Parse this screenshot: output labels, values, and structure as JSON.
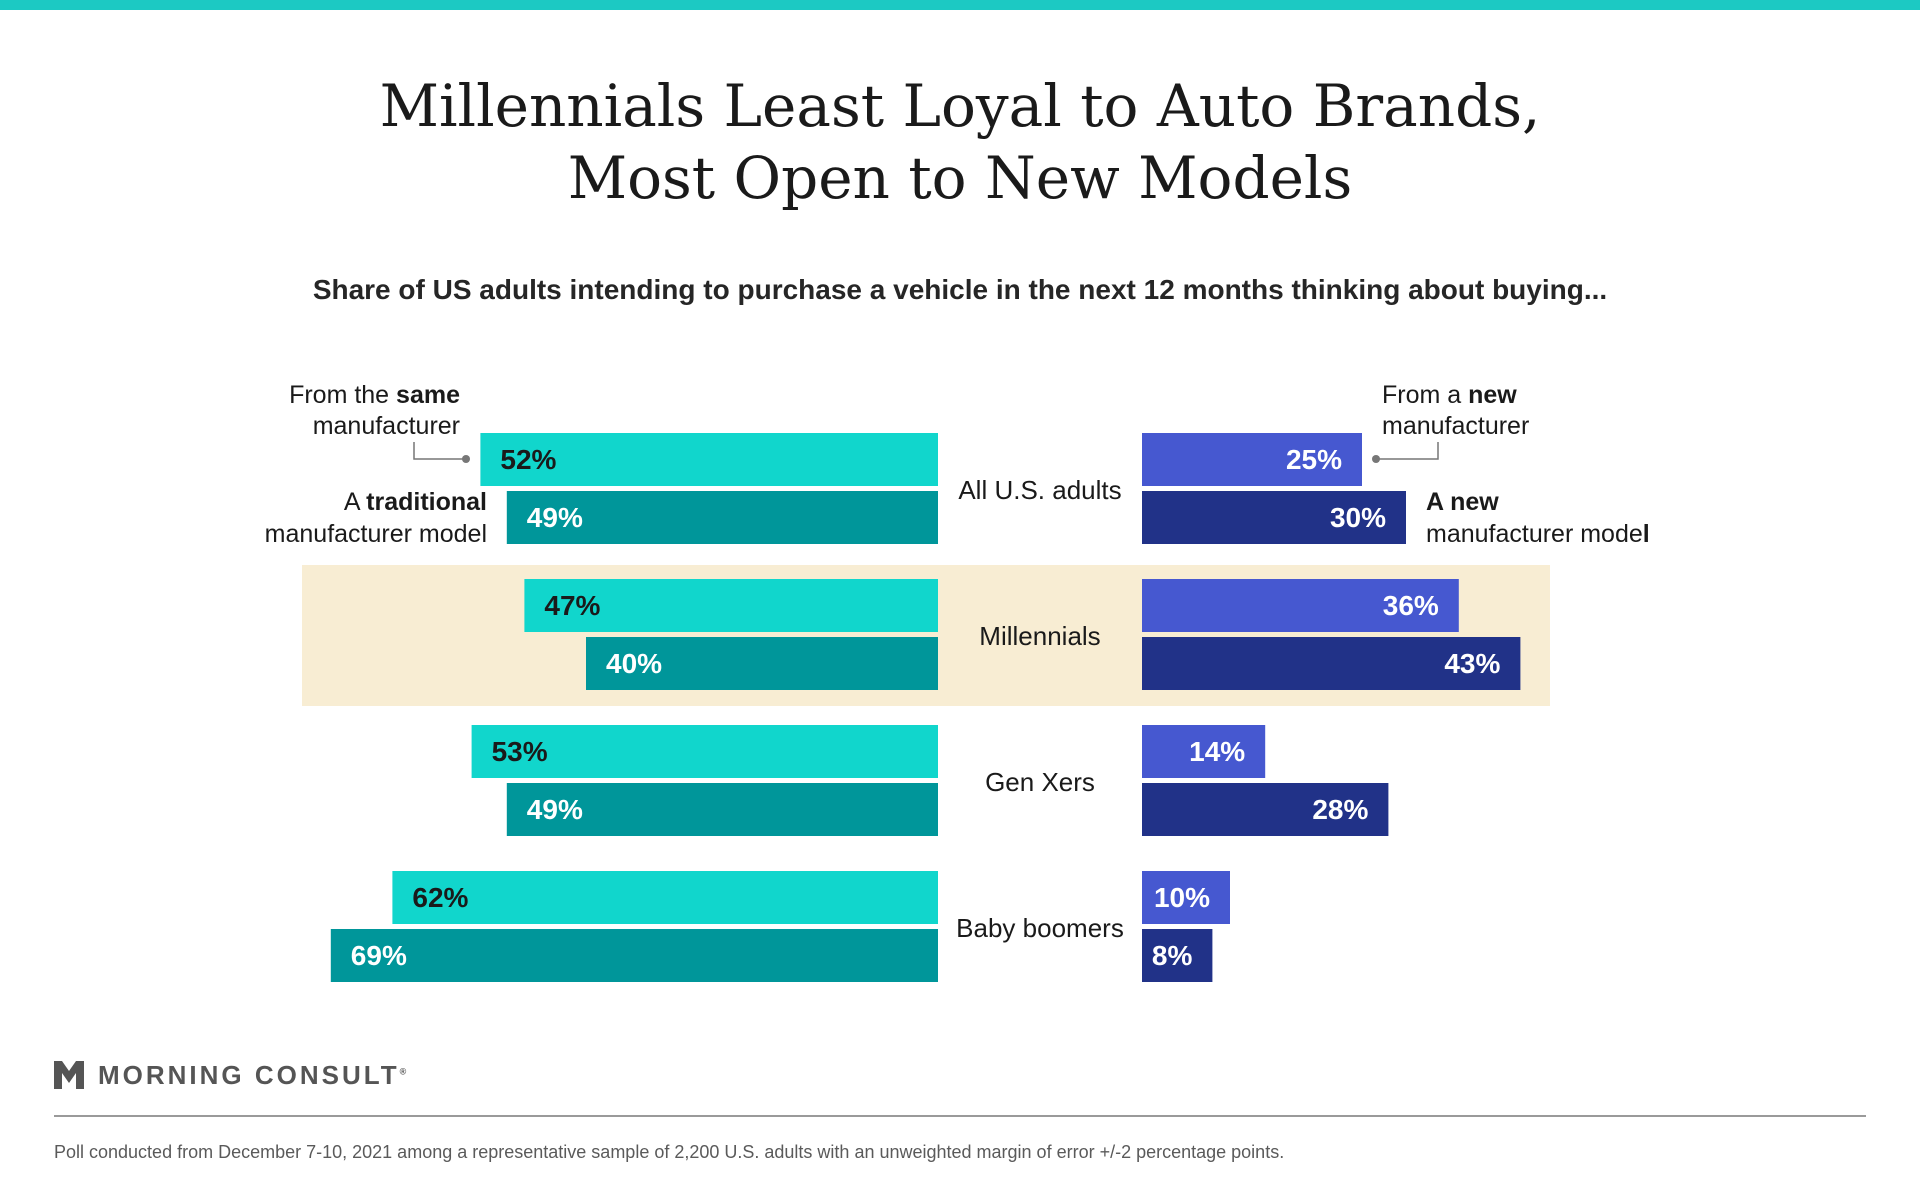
{
  "title_line1": "Millennials Least Loyal to Auto Brands,",
  "title_line2": "Most Open to New Models",
  "subtitle": "Share of US adults intending to purchase a vehicle in the next 12 months thinking about buying...",
  "annotations": {
    "same_line1_pre": "From the ",
    "same_line1_bold": "same",
    "same_line2": "manufacturer",
    "traditional_line1_pre": "A ",
    "traditional_line1_bold": "traditional",
    "traditional_line2": "manufacturer model",
    "new_line1_pre": "From a ",
    "new_line1_bold": "new",
    "new_line2": "manufacturer",
    "newmodel_line1_bold": "A new",
    "newmodel_line2_pre": "manufacturer mode",
    "newmodel_line2_bold": "l"
  },
  "chart_data": {
    "type": "bar",
    "orientation": "horizontal-diverging",
    "categories": [
      "All U.S. adults",
      "Millennials",
      "Gen Xers",
      "Baby boomers"
    ],
    "highlighted_category": "Millennials",
    "series": [
      {
        "name": "From the same manufacturer",
        "side": "left",
        "color": "#11d6cc",
        "label_color": "#1a1a1a",
        "values": [
          52,
          47,
          53,
          62
        ]
      },
      {
        "name": "A traditional manufacturer model",
        "side": "left",
        "color": "#00969a",
        "label_color": "#ffffff",
        "values": [
          49,
          40,
          49,
          69
        ]
      },
      {
        "name": "From a new manufacturer",
        "side": "right",
        "color": "#4658d0",
        "label_color": "#ffffff",
        "values": [
          25,
          36,
          14,
          10
        ]
      },
      {
        "name": "A new manufacturer model",
        "side": "right",
        "color": "#213288",
        "label_color": "#ffffff",
        "values": [
          30,
          43,
          28,
          8
        ]
      }
    ],
    "value_suffix": "%",
    "highlight_color": "#f8edd3"
  },
  "logo_text": "MORNING CONSULT",
  "logo_mark": "®",
  "footnote": "Poll conducted from December 7-10, 2021 among a representative sample of 2,200 U.S. adults with an unweighted margin of error +/-2 percentage points."
}
